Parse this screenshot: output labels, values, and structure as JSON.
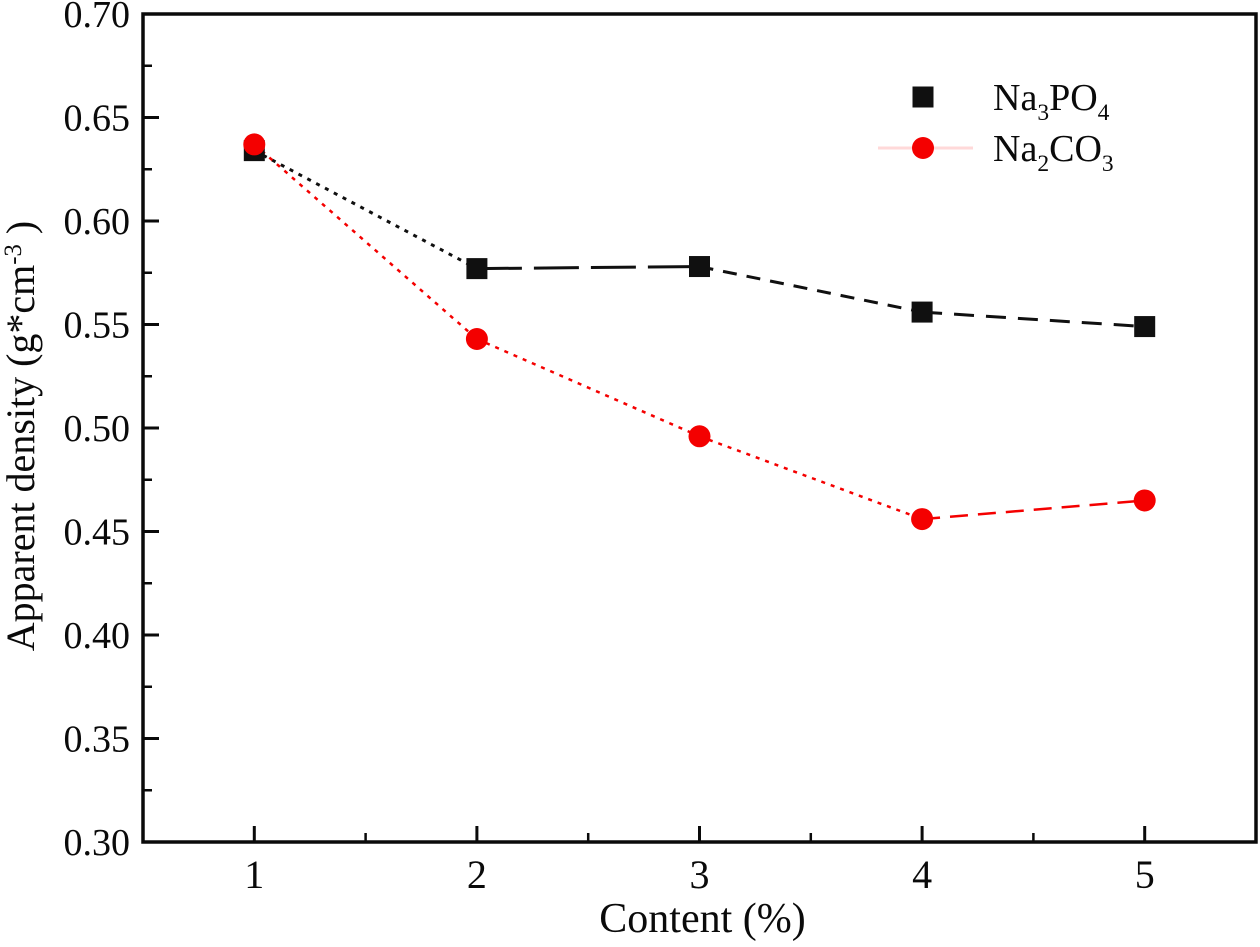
{
  "background": "#ffffff",
  "chart_data": {
    "type": "line",
    "title": "",
    "xlabel": "Content (%)",
    "ylabel": "Apparent density (g*cm-3 )",
    "ylabel_parts": [
      {
        "t": "Apparent density (g*cm"
      },
      {
        "t": "-3",
        "s": "sup"
      },
      {
        "t": " )"
      }
    ],
    "xlim": [
      0.5,
      5.5
    ],
    "ylim": [
      0.3,
      0.7
    ],
    "grid": false,
    "legend_position": "inside-upper-right",
    "x": [
      1,
      2,
      3,
      4,
      5
    ],
    "x_ticks": [
      {
        "value": 1,
        "label": "1"
      },
      {
        "value": 2,
        "label": "2"
      },
      {
        "value": 3,
        "label": "3"
      },
      {
        "value": 4,
        "label": "4"
      },
      {
        "value": 5,
        "label": "5"
      }
    ],
    "x_minor_ticks": [
      1.5,
      2.5,
      3.5,
      4.5
    ],
    "y_ticks": [
      {
        "value": 0.3,
        "label": "0.30"
      },
      {
        "value": 0.35,
        "label": "0.35"
      },
      {
        "value": 0.4,
        "label": "0.40"
      },
      {
        "value": 0.45,
        "label": "0.45"
      },
      {
        "value": 0.5,
        "label": "0.50"
      },
      {
        "value": 0.55,
        "label": "0.55"
      },
      {
        "value": 0.6,
        "label": "0.60"
      },
      {
        "value": 0.65,
        "label": "0.65"
      },
      {
        "value": 0.7,
        "label": "0.70"
      }
    ],
    "y_minor_ticks": [
      0.325,
      0.375,
      0.425,
      0.475,
      0.525,
      0.575,
      0.625,
      0.675
    ],
    "series": [
      {
        "name": "Na3PO4",
        "label_parts": [
          {
            "t": "Na"
          },
          {
            "t": "3",
            "s": "sub"
          },
          {
            "t": "PO"
          },
          {
            "t": "4",
            "s": "sub"
          }
        ],
        "marker": "square",
        "color": "#101010",
        "line_width": 3,
        "values": [
          0.634,
          0.577,
          0.578,
          0.556,
          0.549
        ],
        "segment_dashes": [
          "4 6",
          "45 12",
          "14 10",
          "20 12"
        ],
        "legend_line_color": "none"
      },
      {
        "name": "Na2CO3",
        "label_parts": [
          {
            "t": "Na"
          },
          {
            "t": "2",
            "s": "sub"
          },
          {
            "t": "CO"
          },
          {
            "t": "3",
            "s": "sub"
          }
        ],
        "marker": "circle",
        "color": "#f40000",
        "line_width": 2.5,
        "values": [
          0.637,
          0.543,
          0.496,
          0.456,
          0.465
        ],
        "segment_dashes": [
          "4 6",
          "4 6",
          "4 6",
          "18 10"
        ],
        "legend_line_color": "#ffd9d9"
      }
    ]
  },
  "colors": {
    "axis": "#0a0a0a",
    "series_black": "#101010",
    "series_red": "#f40000"
  }
}
